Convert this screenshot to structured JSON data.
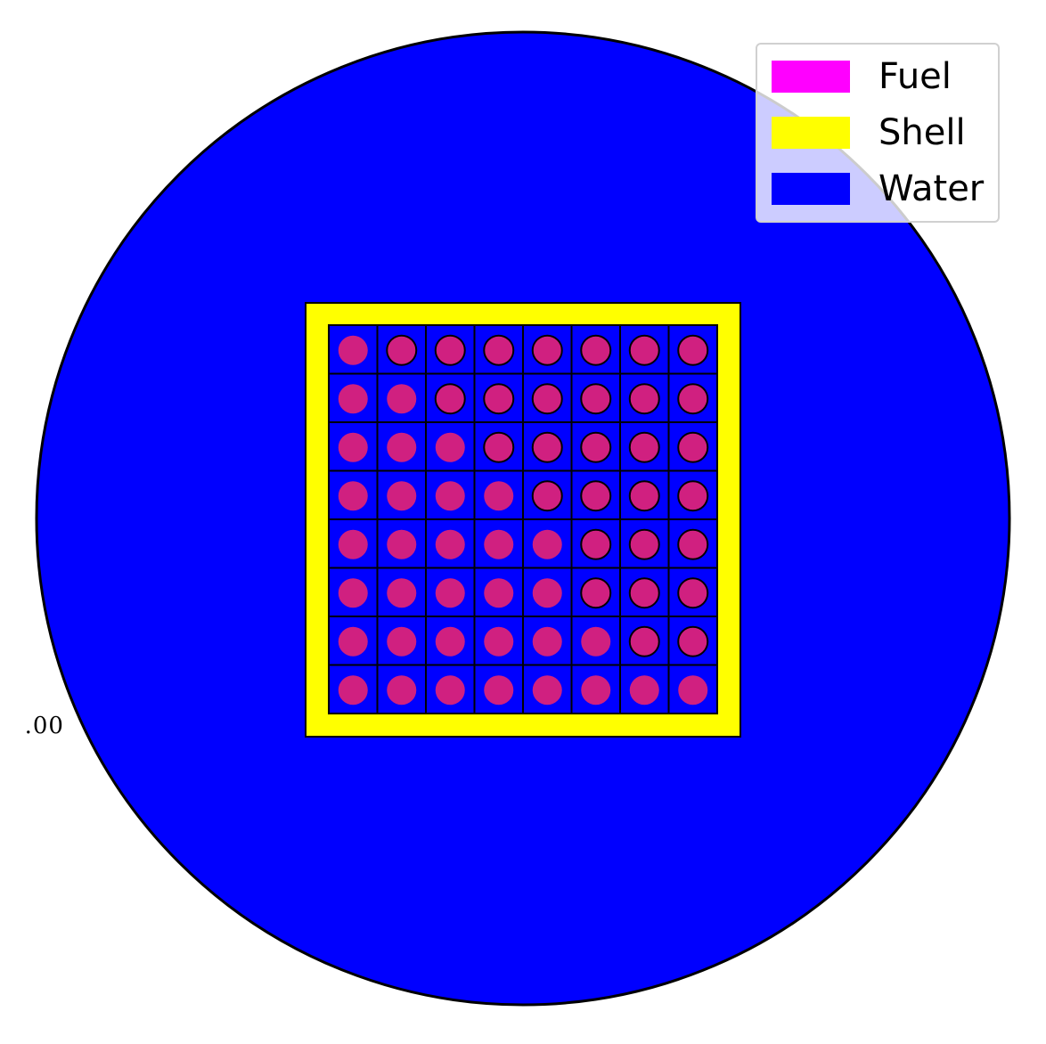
{
  "axis_fragment": "\u0000.00",
  "legend": {
    "items": [
      {
        "label": "Fuel",
        "color": "#ff00ff"
      },
      {
        "label": "Shell",
        "color": "#ffff00"
      },
      {
        "label": "Water",
        "color": "#0000ff"
      }
    ]
  },
  "colors": {
    "water": "#0000ff",
    "shell": "#ffff00",
    "fuel_pin": "#d02080",
    "grid_line": "#000000",
    "outline": "#000000"
  },
  "lattice": {
    "rows": 8,
    "cols": 8
  }
}
